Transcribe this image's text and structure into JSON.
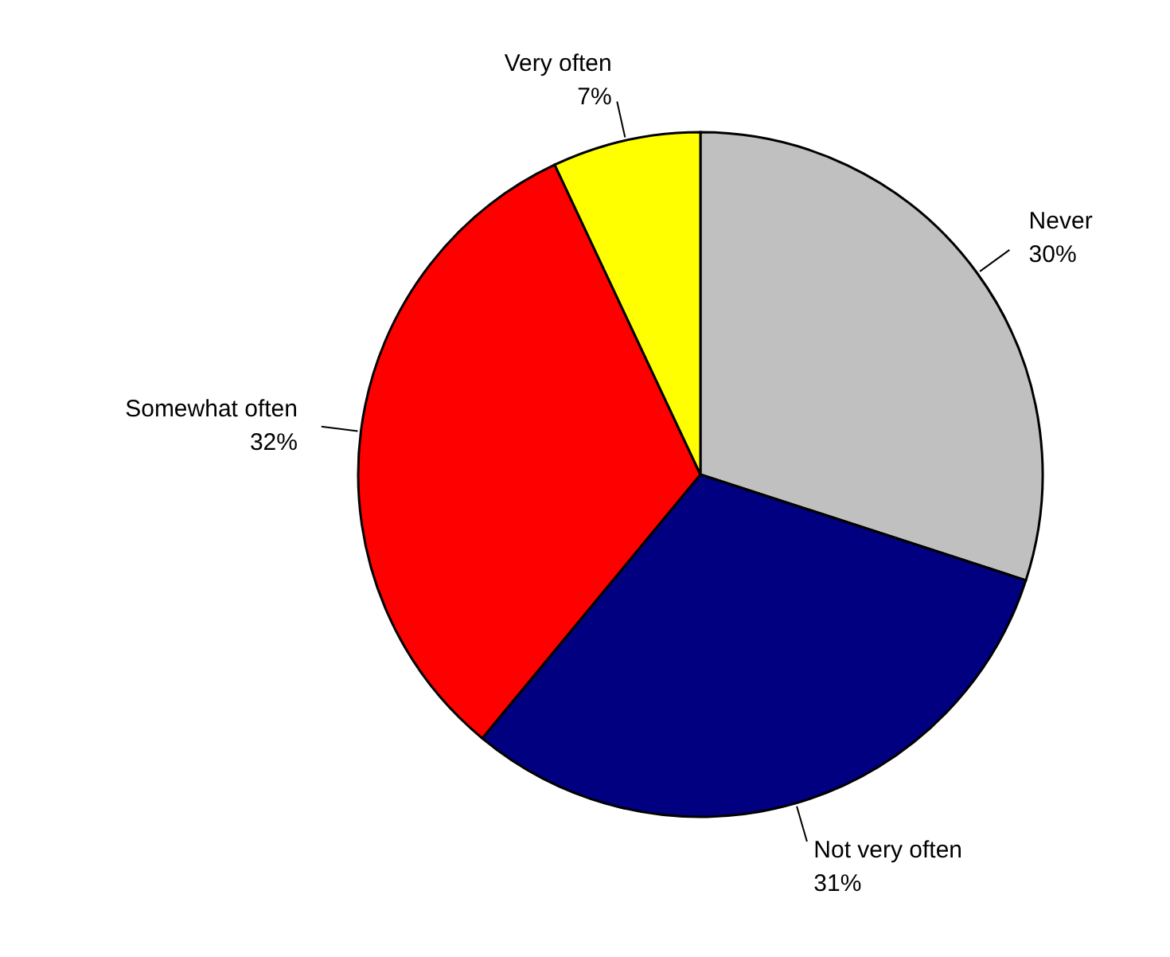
{
  "chart_data": {
    "type": "pie",
    "categories": [
      "Never",
      "Not very often",
      "Somewhat often",
      "Very often"
    ],
    "values": [
      30,
      31,
      32,
      7
    ],
    "colors": [
      "#c0c0c0",
      "#000080",
      "#ff0000",
      "#ffff00"
    ],
    "value_labels": [
      "30%",
      "31%",
      "32%",
      "7%"
    ],
    "legend": false
  }
}
